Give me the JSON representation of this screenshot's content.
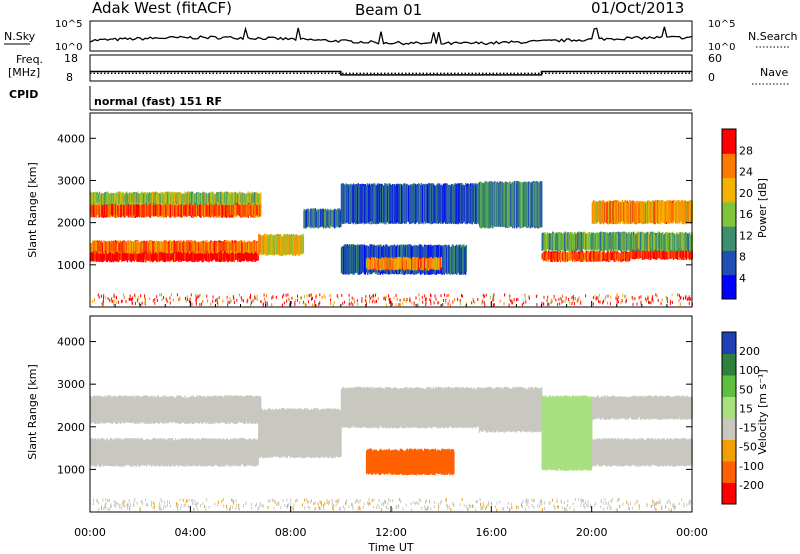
{
  "header": {
    "title": "Adak West (fitACF)",
    "beam": "Beam 01",
    "date": "01/Oct/2013"
  },
  "sky_panel": {
    "left_label": "N.Sky",
    "right_label": "N.Search",
    "left_ticks": [
      "10^5",
      "10^0"
    ],
    "right_ticks": [
      "10^5",
      "10^0"
    ]
  },
  "freq_panel": {
    "left_label_top": "Freq.",
    "left_label_bottom": "[MHz]",
    "right_label": "Nave",
    "left_ticks": [
      "18",
      "8"
    ],
    "right_ticks": [
      "60",
      "0"
    ],
    "cpid_label": "CPID",
    "mode_text": "normal (fast) 151 RF",
    "freq_value_mhz": 12.5,
    "nave_value": [
      [
        0,
        22
      ],
      [
        10,
        22
      ],
      [
        10,
        14
      ],
      [
        18,
        14
      ],
      [
        18,
        22
      ],
      [
        24,
        22
      ]
    ]
  },
  "x_axis": {
    "label": "Time UT",
    "ticks": [
      "00:00",
      "04:00",
      "08:00",
      "12:00",
      "16:00",
      "20:00",
      "00:00"
    ],
    "range_hours": [
      0,
      24
    ]
  },
  "chart_data": [
    {
      "type": "heatmap",
      "name": "power",
      "ylabel": "Slant Range [km]",
      "xlabel": "",
      "ylim": [
        0,
        4600
      ],
      "yticks": [
        "1000",
        "2000",
        "3000",
        "4000"
      ],
      "colorbar": {
        "label": "Power [dB]",
        "ticks": [
          "4",
          "8",
          "12",
          "16",
          "20",
          "24",
          "28"
        ],
        "colors": [
          "#0000ff",
          "#1f4fb4",
          "#3d8f6d",
          "#7fc43a",
          "#f2b400",
          "#ff7a00",
          "#ff0000"
        ]
      },
      "bands": [
        {
          "x": [
            0,
            6.7
          ],
          "y": [
            1100,
            1300
          ],
          "v": 28
        },
        {
          "x": [
            0,
            6.7
          ],
          "y": [
            1300,
            1550
          ],
          "v": 22
        },
        {
          "x": [
            6.7,
            8.5
          ],
          "y": [
            1250,
            1700
          ],
          "v": 18
        },
        {
          "x": [
            8.5,
            10
          ],
          "y": [
            1900,
            2300
          ],
          "v": 8
        },
        {
          "x": [
            0,
            6.8
          ],
          "y": [
            2150,
            2450
          ],
          "v": 24
        },
        {
          "x": [
            0,
            6.8
          ],
          "y": [
            2450,
            2700
          ],
          "v": 14
        },
        {
          "x": [
            10,
            15.5
          ],
          "y": [
            2000,
            2900
          ],
          "v": 6
        },
        {
          "x": [
            15.5,
            18
          ],
          "y": [
            1900,
            2950
          ],
          "v": 10
        },
        {
          "x": [
            10,
            15
          ],
          "y": [
            800,
            1450
          ],
          "v": 6
        },
        {
          "x": [
            11,
            14
          ],
          "y": [
            900,
            1150
          ],
          "v": 20
        },
        {
          "x": [
            18,
            21.5
          ],
          "y": [
            1100,
            1300
          ],
          "v": 24
        },
        {
          "x": [
            21.5,
            24
          ],
          "y": [
            1150,
            1350
          ],
          "v": 26
        },
        {
          "x": [
            18,
            24
          ],
          "y": [
            1350,
            1750
          ],
          "v": 12
        },
        {
          "x": [
            20,
            24
          ],
          "y": [
            2000,
            2500
          ],
          "v": 20
        }
      ]
    },
    {
      "type": "heatmap",
      "name": "velocity",
      "ylabel": "Slant Range [km]",
      "xlabel": "Time UT",
      "ylim": [
        0,
        4600
      ],
      "yticks": [
        "1000",
        "2000",
        "3000",
        "4000"
      ],
      "colorbar": {
        "label": "Velocity [m s⁻¹]",
        "ticks": [
          "200",
          "100",
          "50",
          "15",
          "-15",
          "-50",
          "-100",
          "-200"
        ],
        "colors": [
          "#1f3fb4",
          "#2f7f3f",
          "#5fbf3f",
          "#a8e080",
          "#c8c8c0",
          "#f0a000",
          "#ff6000",
          "#ff0000"
        ]
      },
      "bands": [
        {
          "x": [
            0,
            6.7
          ],
          "y": [
            1100,
            1700
          ],
          "v": -5
        },
        {
          "x": [
            0,
            6.8
          ],
          "y": [
            2100,
            2700
          ],
          "v": -5
        },
        {
          "x": [
            6.7,
            10
          ],
          "y": [
            1300,
            2400
          ],
          "v": -5
        },
        {
          "x": [
            10,
            15.5
          ],
          "y": [
            2000,
            2900
          ],
          "v": -5
        },
        {
          "x": [
            11,
            14.5
          ],
          "y": [
            900,
            1450
          ],
          "v": -60
        },
        {
          "x": [
            15.5,
            18
          ],
          "y": [
            1900,
            2900
          ],
          "v": -5
        },
        {
          "x": [
            18,
            20
          ],
          "y": [
            1000,
            2700
          ],
          "v": 20
        },
        {
          "x": [
            20,
            24
          ],
          "y": [
            1100,
            1700
          ],
          "v": -5
        },
        {
          "x": [
            20,
            24
          ],
          "y": [
            2200,
            2700
          ],
          "v": -5
        }
      ]
    }
  ]
}
